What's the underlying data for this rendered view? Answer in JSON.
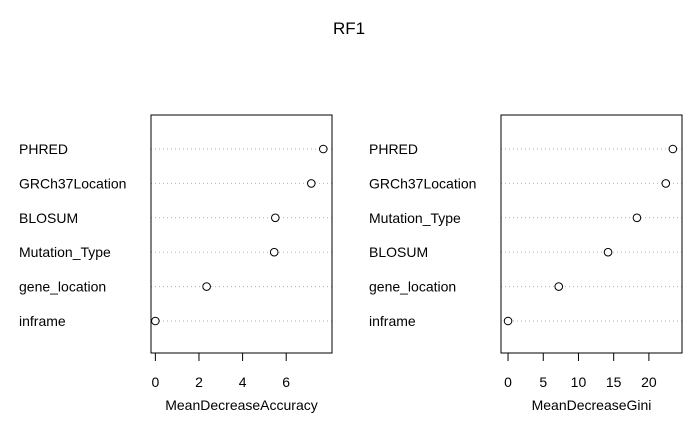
{
  "chart_data": {
    "title": "RF1",
    "panels": [
      {
        "type": "scatter",
        "xlabel": "MeanDecreaseAccuracy",
        "xlim": [
          -0.2,
          8.1
        ],
        "xticks": [
          0,
          2,
          4,
          6
        ],
        "grid": "dotted horizontal",
        "categories": [
          "PHRED",
          "GRCh37Location",
          "BLOSUM",
          "Mutation_Type",
          "gene_location",
          "inframe"
        ],
        "values": [
          7.7,
          7.15,
          5.5,
          5.45,
          2.35,
          0.0
        ]
      },
      {
        "type": "scatter",
        "xlabel": "MeanDecreaseGini",
        "xlim": [
          -1.0,
          24.7
        ],
        "xticks": [
          0,
          5,
          10,
          15,
          20
        ],
        "grid": "dotted horizontal",
        "categories": [
          "PHRED",
          "GRCh37Location",
          "Mutation_Type",
          "BLOSUM",
          "gene_location",
          "inframe"
        ],
        "values": [
          23.4,
          22.4,
          18.3,
          14.2,
          7.2,
          0.0
        ]
      }
    ]
  }
}
